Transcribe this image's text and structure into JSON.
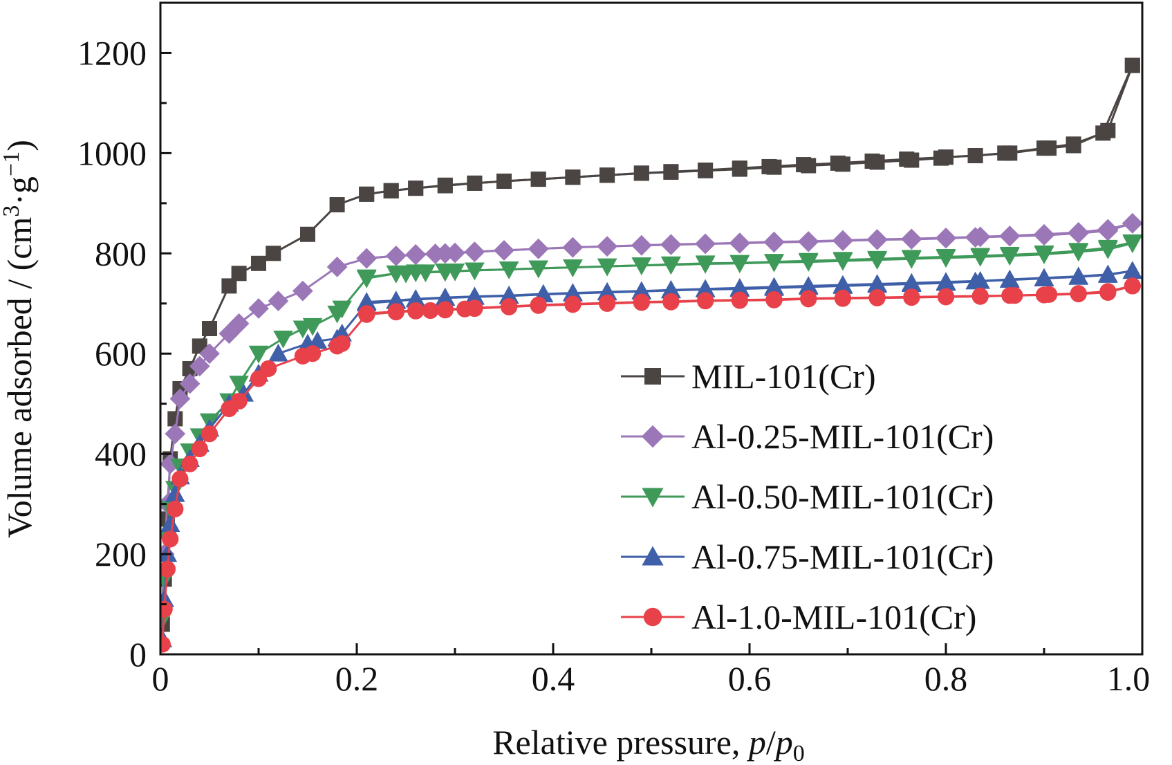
{
  "chart_data": {
    "type": "line",
    "title": "",
    "xlabel": "Relative pressure, p/p0",
    "xlabel_parts": {
      "prefix": "Relative pressure, ",
      "p": "p",
      "slash": "/",
      "p0": "p",
      "sub": "0"
    },
    "ylabel": "Volume adsorbed / (cm3·g−1)",
    "ylabel_parts": {
      "prefix": "Volume adsorbed / (cm",
      "sup1": "3",
      "mid": "·g",
      "sup2": "−1",
      "suffix": ")"
    },
    "xlim": [
      0,
      1.0
    ],
    "ylim": [
      0,
      1300
    ],
    "x_ticks": [
      0,
      0.2,
      0.4,
      0.6,
      0.8,
      1.0
    ],
    "x_tick_labels": [
      "0",
      "0.2",
      "0.4",
      "0.6",
      "0.8",
      "1.0"
    ],
    "y_ticks": [
      0,
      200,
      400,
      600,
      800,
      1000,
      1200
    ],
    "y_tick_labels": [
      "0",
      "200",
      "400",
      "600",
      "800",
      "1000",
      "1200"
    ],
    "grid": false,
    "legend_position": "bottom-right",
    "series": [
      {
        "name": "MIL-101(Cr)",
        "color": "#4a4542",
        "marker": "square",
        "adsorption": {
          "x": [
            0.002,
            0.004,
            0.007,
            0.01,
            0.015,
            0.02,
            0.03,
            0.04,
            0.05,
            0.07,
            0.08,
            0.1,
            0.115,
            0.15,
            0.18,
            0.21,
            0.235,
            0.26,
            0.29,
            0.32,
            0.35,
            0.385,
            0.42,
            0.455,
            0.49,
            0.52,
            0.555,
            0.59,
            0.625,
            0.66,
            0.695,
            0.73,
            0.765,
            0.795,
            0.8,
            0.83,
            0.86,
            0.9,
            0.93,
            0.96,
            0.99
          ],
          "y": [
            60,
            150,
            270,
            390,
            470,
            530,
            570,
            615,
            650,
            735,
            760,
            780,
            800,
            838,
            897,
            918,
            925,
            930,
            935,
            940,
            944,
            948,
            952,
            956,
            960,
            962,
            965,
            968,
            972,
            975,
            978,
            982,
            986,
            990,
            992,
            995,
            1000,
            1010,
            1018,
            1040,
            1175
          ]
        },
        "desorption": {
          "x": [
            0.99,
            0.965,
            0.93,
            0.905,
            0.865,
            0.83,
            0.8,
            0.76,
            0.725,
            0.69,
            0.655,
            0.62,
            0.59,
            0.555,
            0.52,
            0.49,
            0.455,
            0.42,
            0.385,
            0.35,
            0.32,
            0.29,
            0.26,
            0.235,
            0.21
          ],
          "y": [
            1175,
            1045,
            1015,
            1010,
            1000,
            995,
            992,
            988,
            984,
            980,
            977,
            973,
            970,
            966,
            963,
            960,
            956,
            952,
            948,
            944,
            940,
            936,
            930,
            925,
            918
          ]
        }
      },
      {
        "name": "Al-0.25-MIL-101(Cr)",
        "color": "#9b77b8",
        "marker": "diamond",
        "adsorption": {
          "x": [
            0.002,
            0.004,
            0.007,
            0.01,
            0.015,
            0.02,
            0.03,
            0.04,
            0.05,
            0.07,
            0.08,
            0.1,
            0.12,
            0.145,
            0.18,
            0.21,
            0.24,
            0.26,
            0.28,
            0.3,
            0.32,
            0.35,
            0.385,
            0.42,
            0.455,
            0.49,
            0.52,
            0.555,
            0.59,
            0.625,
            0.66,
            0.695,
            0.73,
            0.765,
            0.8,
            0.83,
            0.865,
            0.9,
            0.935,
            0.965,
            0.99
          ],
          "y": [
            100,
            200,
            300,
            380,
            440,
            510,
            540,
            575,
            600,
            640,
            660,
            690,
            705,
            725,
            773,
            790,
            795,
            797,
            799,
            801,
            803,
            806,
            809,
            812,
            814,
            816,
            817,
            819,
            820,
            822,
            823,
            825,
            827,
            828,
            830,
            832,
            834,
            836,
            840,
            845,
            860
          ]
        },
        "desorption": {
          "x": [
            0.99,
            0.965,
            0.935,
            0.9,
            0.865,
            0.835,
            0.8,
            0.765,
            0.73,
            0.695,
            0.66,
            0.625,
            0.59,
            0.555,
            0.52,
            0.49,
            0.455,
            0.42,
            0.385,
            0.35,
            0.32,
            0.29,
            0.26,
            0.24,
            0.21
          ],
          "y": [
            860,
            848,
            842,
            838,
            835,
            833,
            831,
            829,
            828,
            826,
            824,
            823,
            821,
            819,
            818,
            816,
            814,
            812,
            809,
            806,
            803,
            800,
            798,
            795,
            790
          ]
        }
      },
      {
        "name": "Al-0.50-MIL-101(Cr)",
        "color": "#3f9a5a",
        "marker": "triangle-down",
        "adsorption": {
          "x": [
            0.002,
            0.004,
            0.007,
            0.01,
            0.015,
            0.02,
            0.03,
            0.04,
            0.05,
            0.07,
            0.08,
            0.1,
            0.125,
            0.145,
            0.155,
            0.18,
            0.185,
            0.21,
            0.24,
            0.25,
            0.27,
            0.29,
            0.3,
            0.32,
            0.355,
            0.385,
            0.42,
            0.455,
            0.49,
            0.52,
            0.555,
            0.59,
            0.625,
            0.66,
            0.695,
            0.73,
            0.765,
            0.8,
            0.835,
            0.865,
            0.9,
            0.935,
            0.965,
            0.99
          ],
          "y": [
            70,
            150,
            230,
            290,
            330,
            375,
            405,
            435,
            465,
            505,
            540,
            600,
            630,
            650,
            655,
            680,
            690,
            750,
            760,
            760,
            762,
            763,
            764,
            766,
            768,
            770,
            772,
            774,
            776,
            777,
            779,
            780,
            782,
            783,
            785,
            787,
            789,
            791,
            793,
            795,
            798,
            803,
            808,
            820
          ]
        },
        "desorption": {
          "x": [
            0.99,
            0.965,
            0.935,
            0.9,
            0.865,
            0.835,
            0.8,
            0.765,
            0.73,
            0.695,
            0.66,
            0.625,
            0.59,
            0.555,
            0.52,
            0.49,
            0.455,
            0.42,
            0.385,
            0.355,
            0.32,
            0.29,
            0.26,
            0.24,
            0.21
          ],
          "y": [
            822,
            811,
            805,
            800,
            797,
            795,
            793,
            791,
            789,
            787,
            785,
            783,
            781,
            780,
            778,
            776,
            774,
            772,
            770,
            768,
            766,
            764,
            762,
            760,
            752
          ]
        }
      },
      {
        "name": "Al-0.75-MIL-101(Cr)",
        "color": "#3f5fa8",
        "marker": "triangle-up",
        "adsorption": {
          "x": [
            0.002,
            0.004,
            0.007,
            0.01,
            0.015,
            0.02,
            0.03,
            0.04,
            0.05,
            0.07,
            0.085,
            0.1,
            0.12,
            0.15,
            0.16,
            0.18,
            0.185,
            0.21,
            0.24,
            0.26,
            0.29,
            0.32,
            0.355,
            0.39,
            0.42,
            0.455,
            0.49,
            0.52,
            0.555,
            0.59,
            0.625,
            0.66,
            0.695,
            0.73,
            0.765,
            0.8,
            0.83,
            0.865,
            0.9,
            0.935,
            0.965,
            0.99
          ],
          "y": [
            30,
            110,
            200,
            260,
            320,
            355,
            390,
            420,
            450,
            500,
            520,
            560,
            600,
            620,
            625,
            630,
            640,
            700,
            705,
            708,
            711,
            713,
            715,
            718,
            720,
            722,
            724,
            726,
            728,
            729,
            731,
            733,
            735,
            737,
            739,
            741,
            744,
            747,
            750,
            753,
            757,
            765
          ]
        },
        "desorption": {
          "x": [
            0.99,
            0.965,
            0.935,
            0.9,
            0.865,
            0.835,
            0.8,
            0.765,
            0.73,
            0.695,
            0.66,
            0.625,
            0.59,
            0.555,
            0.52,
            0.49,
            0.455,
            0.42,
            0.39,
            0.355,
            0.32,
            0.29,
            0.26,
            0.24,
            0.21
          ],
          "y": [
            765,
            758,
            754,
            751,
            748,
            745,
            743,
            741,
            739,
            737,
            735,
            733,
            731,
            729,
            727,
            725,
            723,
            721,
            719,
            716,
            714,
            712,
            709,
            706,
            703
          ]
        }
      },
      {
        "name": "Al-1.0-MIL-101(Cr)",
        "color": "#e8414a",
        "marker": "circle",
        "adsorption": {
          "x": [
            0.002,
            0.004,
            0.007,
            0.01,
            0.015,
            0.02,
            0.03,
            0.04,
            0.05,
            0.07,
            0.08,
            0.1,
            0.11,
            0.145,
            0.155,
            0.18,
            0.185,
            0.21,
            0.24,
            0.26,
            0.275,
            0.29,
            0.31,
            0.32,
            0.355,
            0.385,
            0.42,
            0.455,
            0.49,
            0.52,
            0.555,
            0.59,
            0.625,
            0.66,
            0.695,
            0.73,
            0.765,
            0.8,
            0.835,
            0.865,
            0.9,
            0.935,
            0.965,
            0.99
          ],
          "y": [
            20,
            90,
            170,
            230,
            290,
            350,
            380,
            410,
            440,
            490,
            505,
            550,
            570,
            595,
            600,
            615,
            620,
            678,
            683,
            685,
            686,
            687,
            689,
            690,
            693,
            696,
            698,
            700,
            702,
            703,
            705,
            706,
            707,
            709,
            710,
            711,
            712,
            713,
            714,
            716,
            717,
            719,
            722,
            735
          ]
        },
        "desorption": {
          "x": [
            0.99,
            0.965,
            0.935,
            0.905,
            0.87,
            0.835,
            0.8,
            0.765,
            0.73,
            0.695,
            0.66,
            0.625,
            0.59,
            0.555,
            0.52,
            0.49,
            0.455,
            0.42,
            0.385,
            0.355,
            0.32,
            0.29,
            0.26,
            0.24,
            0.21
          ],
          "y": [
            735,
            724,
            720,
            718,
            716,
            715,
            714,
            713,
            712,
            711,
            710,
            708,
            707,
            706,
            704,
            703,
            701,
            699,
            697,
            694,
            691,
            688,
            686,
            684,
            680
          ]
        }
      }
    ]
  }
}
